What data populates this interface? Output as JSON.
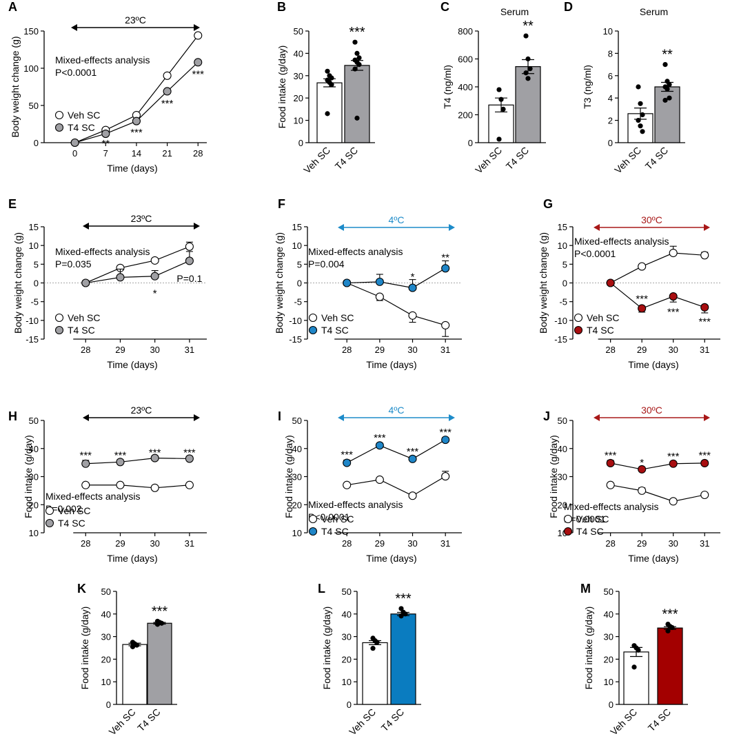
{
  "colors": {
    "veh": "#ffffff",
    "t4_23": "#a0a0a4",
    "t4_4": "#1f86c8",
    "t4_30": "#a80e10",
    "bar_t4_23_k": "#a0a0a4",
    "bar_t4_4": "#0a7cc0",
    "bar_t4_30": "#a30000",
    "black": "#000000",
    "blue_arrow": "#1d8bc9",
    "red_arrow": "#a81818"
  },
  "legend": {
    "veh": "Veh SC",
    "t4": "T4 SC"
  },
  "chart_data": [
    {
      "id": "A",
      "type": "line",
      "xlabel": "Time (days)",
      "ylabel": "Body weight change (g)",
      "x": [
        0,
        7,
        14,
        21,
        28
      ],
      "xlim": [
        -7,
        30
      ],
      "ylim": [
        0,
        150
      ],
      "yticks": [
        0,
        50,
        100,
        150
      ],
      "series": [
        {
          "name": "Veh SC",
          "values": [
            0,
            17,
            37,
            90,
            144
          ]
        },
        {
          "name": "T4 SC",
          "values": [
            0,
            12,
            29,
            69,
            108
          ]
        }
      ],
      "stars": [
        {
          "x": 7,
          "text": "**",
          "y": -1
        },
        {
          "x": 14,
          "text": "***",
          "y": 14
        },
        {
          "x": 21,
          "text": "***",
          "y": 53
        },
        {
          "x": 28,
          "text": "***",
          "y": 92
        }
      ],
      "annotation": [
        "Mixed-effects analysis",
        "P<0.0001"
      ],
      "arrow": {
        "label": "23ºC",
        "color_key": "black"
      },
      "t4_color_key": "t4_23"
    },
    {
      "id": "B",
      "type": "bar",
      "ylabel": "Food intake (g/day)",
      "categories": [
        "Veh SC",
        "T4 SC"
      ],
      "values": [
        26.8,
        34.6
      ],
      "sem": [
        1.8,
        2.2
      ],
      "ylim": [
        0,
        50
      ],
      "yticks": [
        0,
        10,
        20,
        30,
        40,
        50
      ],
      "points": [
        [
          32,
          30,
          29,
          28,
          27,
          26,
          13
        ],
        [
          45,
          40,
          38,
          37,
          36,
          35,
          33,
          11
        ]
      ],
      "sig": "***",
      "t4_color_key": "t4_23"
    },
    {
      "id": "C",
      "type": "bar",
      "title": "Serum",
      "ylabel": "T4 (ng/ml)",
      "categories": [
        "Veh SC",
        "T4 SC"
      ],
      "values": [
        270,
        545
      ],
      "sem": [
        50,
        50
      ],
      "ylim": [
        0,
        800
      ],
      "yticks": [
        0,
        200,
        400,
        600,
        800
      ],
      "points": [
        [
          380,
          310,
          240,
          25
        ],
        [
          765,
          600,
          530,
          500,
          460
        ]
      ],
      "sig": "**",
      "t4_color_key": "t4_23"
    },
    {
      "id": "D",
      "type": "bar",
      "title": "Serum",
      "ylabel": "T3 (ng/ml)",
      "categories": [
        "Veh SC",
        "T4 SC"
      ],
      "values": [
        2.6,
        5.0
      ],
      "sem": [
        0.5,
        0.4
      ],
      "ylim": [
        0,
        10
      ],
      "yticks": [
        0,
        2,
        4,
        6,
        8,
        10
      ],
      "points": [
        [
          5.0,
          3.5,
          2.5,
          2.0,
          1.5,
          1.0
        ],
        [
          7.0,
          5.5,
          5.2,
          5.0,
          4.8,
          4.0,
          3.8
        ]
      ],
      "sig": "**",
      "t4_color_key": "t4_23"
    },
    {
      "id": "E",
      "type": "line",
      "xlabel": "Time (days)",
      "ylabel": "Body weight change (g)",
      "x": [
        28,
        29,
        30,
        31
      ],
      "xlim": [
        26.8,
        31.5
      ],
      "ylim": [
        -15,
        15
      ],
      "yticks": [
        -15,
        -10,
        -5,
        0,
        5,
        10,
        15
      ],
      "series": [
        {
          "name": "Veh SC",
          "values": [
            0,
            4,
            6,
            9.7
          ],
          "err": [
            0,
            0.5,
            0.5,
            1.2
          ]
        },
        {
          "name": "T4 SC",
          "values": [
            0,
            1.5,
            1.8,
            5.9
          ],
          "err": [
            0,
            2.2,
            1.5,
            2.5
          ]
        }
      ],
      "stars": [
        {
          "x": 30,
          "text": "*",
          "y": -2.8
        }
      ],
      "pnote": {
        "x": 31,
        "text": "P=0.1",
        "y": 1.2
      },
      "annotation": [
        "Mixed-effects analysis",
        "P=0.035"
      ],
      "arrow": {
        "label": "23ºC",
        "color_key": "black"
      },
      "t4_color_key": "t4_23"
    },
    {
      "id": "F",
      "type": "line",
      "xlabel": "Time (days)",
      "ylabel": "Body weight change (g)",
      "x": [
        28,
        29,
        30,
        31
      ],
      "xlim": [
        26.8,
        31.5
      ],
      "ylim": [
        -15,
        15
      ],
      "yticks": [
        -15,
        -10,
        -5,
        0,
        5,
        10,
        15
      ],
      "series": [
        {
          "name": "Veh SC",
          "values": [
            0,
            -3.7,
            -8.7,
            -11.3
          ],
          "err": [
            0,
            1.0,
            1.8,
            3.0
          ]
        },
        {
          "name": "T4 SC",
          "values": [
            0,
            0.3,
            -1.3,
            3.9
          ],
          "err": [
            0,
            2.0,
            2.2,
            2.0
          ]
        }
      ],
      "stars": [
        {
          "x": 30,
          "text": "*",
          "y": 1.7
        },
        {
          "x": 31,
          "text": "**",
          "y": 6.8
        }
      ],
      "annotation": [
        "Mixed-effects analysis",
        "P=0.004"
      ],
      "arrow": {
        "label": "4ºC",
        "color_key": "blue_arrow"
      },
      "t4_color_key": "t4_4"
    },
    {
      "id": "G",
      "type": "line",
      "xlabel": "Time (days)",
      "ylabel": "Body weight change (g)",
      "x": [
        28,
        29,
        30,
        31
      ],
      "xlim": [
        26.8,
        31.5
      ],
      "ylim": [
        -15,
        15
      ],
      "yticks": [
        -15,
        -10,
        -5,
        0,
        5,
        10,
        15
      ],
      "series": [
        {
          "name": "Veh SC",
          "values": [
            0,
            4.4,
            8,
            7.4
          ],
          "err": [
            0,
            0.5,
            1.8,
            0.8
          ]
        },
        {
          "name": "T4 SC",
          "values": [
            0,
            -6.8,
            -3.6,
            -6.5
          ],
          "err": [
            0,
            1.0,
            1.5,
            1.5
          ]
        }
      ],
      "stars": [
        {
          "x": 29,
          "text": "***",
          "y": -4.2
        },
        {
          "x": 30,
          "text": "***",
          "y": -7.7
        },
        {
          "x": 31,
          "text": "***",
          "y": -10.3
        }
      ],
      "annotation": [
        "Mixed-effects analysis",
        "P<0.0001"
      ],
      "arrow": {
        "label": "30ºC",
        "color_key": "red_arrow"
      },
      "t4_color_key": "t4_30"
    },
    {
      "id": "H",
      "type": "line",
      "xlabel": "Time (days)",
      "ylabel": "Food intake (g/day)",
      "x": [
        28,
        29,
        30,
        31
      ],
      "xlim": [
        26.8,
        31.5
      ],
      "ylim": [
        10,
        50
      ],
      "yticks": [
        10,
        20,
        30,
        40,
        50
      ],
      "series": [
        {
          "name": "Veh SC",
          "values": [
            27,
            27,
            26,
            27
          ],
          "err": [
            0,
            0,
            0,
            0
          ]
        },
        {
          "name": "T4 SC",
          "values": [
            34.6,
            35.2,
            36.6,
            36.4
          ],
          "err": [
            1.2,
            0.8,
            0.8,
            0.8
          ]
        }
      ],
      "stars": [
        {
          "x": 28,
          "text": "***",
          "y": 37.6
        },
        {
          "x": 29,
          "text": "***",
          "y": 37.6
        },
        {
          "x": 30,
          "text": "***",
          "y": 38.6
        },
        {
          "x": 31,
          "text": "***",
          "y": 38.6
        }
      ],
      "annotation": [
        "Mixed-effects analysis",
        "P=0.002"
      ],
      "arrow": {
        "label": "23ºC",
        "color_key": "black"
      },
      "t4_color_key": "t4_23"
    },
    {
      "id": "I",
      "type": "line",
      "xlabel": "Time (days)",
      "ylabel": "Food intake (g/day)",
      "x": [
        28,
        29,
        30,
        31
      ],
      "xlim": [
        26.8,
        31.5
      ],
      "ylim": [
        10,
        50
      ],
      "yticks": [
        10,
        20,
        30,
        40,
        50
      ],
      "series": [
        {
          "name": "Veh SC",
          "values": [
            27,
            28.9,
            23.2,
            30.1
          ],
          "err": [
            0,
            0,
            0,
            1.8
          ]
        },
        {
          "name": "T4 SC",
          "values": [
            34.9,
            41.1,
            36.3,
            43.1
          ],
          "err": [
            1.0,
            0.8,
            0.8,
            0.8
          ]
        }
      ],
      "stars": [
        {
          "x": 28,
          "text": "***",
          "y": 37.8
        },
        {
          "x": 29,
          "text": "***",
          "y": 43.9
        },
        {
          "x": 30,
          "text": "***",
          "y": 39
        },
        {
          "x": 31,
          "text": "***",
          "y": 45.8
        }
      ],
      "annotation": [
        "Mixed-effects analysis",
        "P<0.0001"
      ],
      "arrow": {
        "label": "4ºC",
        "color_key": "blue_arrow"
      },
      "t4_color_key": "t4_4"
    },
    {
      "id": "J",
      "type": "line",
      "xlabel": "Time (days)",
      "ylabel": "Food intake (g/day)",
      "x": [
        28,
        29,
        30,
        31
      ],
      "xlim": [
        26.8,
        31.5
      ],
      "ylim": [
        10,
        50
      ],
      "yticks": [
        10,
        20,
        30,
        40,
        50
      ],
      "series": [
        {
          "name": "Veh SC",
          "values": [
            27,
            25,
            21.2,
            23.5
          ],
          "err": [
            0,
            1.0,
            0.8,
            0.6
          ]
        },
        {
          "name": "T4 SC",
          "values": [
            34.8,
            32.6,
            34.6,
            34.8
          ],
          "err": [
            1.0,
            0.6,
            0.6,
            0.6
          ]
        }
      ],
      "stars": [
        {
          "x": 28,
          "text": "***",
          "y": 37.6
        },
        {
          "x": 29,
          "text": "*",
          "y": 35
        },
        {
          "x": 30,
          "text": "***",
          "y": 37.3
        },
        {
          "x": 31,
          "text": "***",
          "y": 37.6
        }
      ],
      "annotation": [
        "Mixed-effects analysis",
        "P=0.0001"
      ],
      "arrow": {
        "label": "30ºC",
        "color_key": "red_arrow"
      },
      "t4_color_key": "t4_30"
    },
    {
      "id": "K",
      "type": "bar",
      "ylabel": "Food intake (g/day)",
      "categories": [
        "Veh SC",
        "T4 SC"
      ],
      "values": [
        26.5,
        35.9
      ],
      "sem": [
        0.6,
        0.4
      ],
      "ylim": [
        0,
        50
      ],
      "yticks": [
        0,
        10,
        20,
        30,
        40,
        50
      ],
      "points": [
        [
          27.5,
          26.8,
          26.2,
          25.5
        ],
        [
          36.8,
          36.3,
          35.9,
          35.4
        ]
      ],
      "sig": "***",
      "t4_color_key": "bar_t4_23_k"
    },
    {
      "id": "L",
      "type": "bar",
      "ylabel": "Food intake (g/day)",
      "categories": [
        "Veh SC",
        "T4 SC"
      ],
      "values": [
        27.3,
        40.0
      ],
      "sem": [
        0.9,
        0.7
      ],
      "ylim": [
        0,
        50
      ],
      "yticks": [
        0,
        10,
        20,
        30,
        40,
        50
      ],
      "points": [
        [
          29.3,
          28.2,
          27.5,
          24.8
        ],
        [
          42.4,
          40.8,
          40.0,
          39.1
        ]
      ],
      "sig": "***",
      "t4_color_key": "bar_t4_4"
    },
    {
      "id": "M",
      "type": "bar",
      "ylabel": "Food intake (g/day)",
      "categories": [
        "Veh SC",
        "T4 SC"
      ],
      "values": [
        23.2,
        33.8
      ],
      "sem": [
        2.0,
        0.6
      ],
      "ylim": [
        0,
        50
      ],
      "yticks": [
        0,
        10,
        20,
        30,
        40,
        50
      ],
      "points": [
        [
          26.0,
          25.0,
          24.0,
          16.5
        ],
        [
          35.5,
          34.5,
          34.0,
          32.5
        ]
      ],
      "sig": "***",
      "t4_color_key": "bar_t4_30"
    }
  ]
}
